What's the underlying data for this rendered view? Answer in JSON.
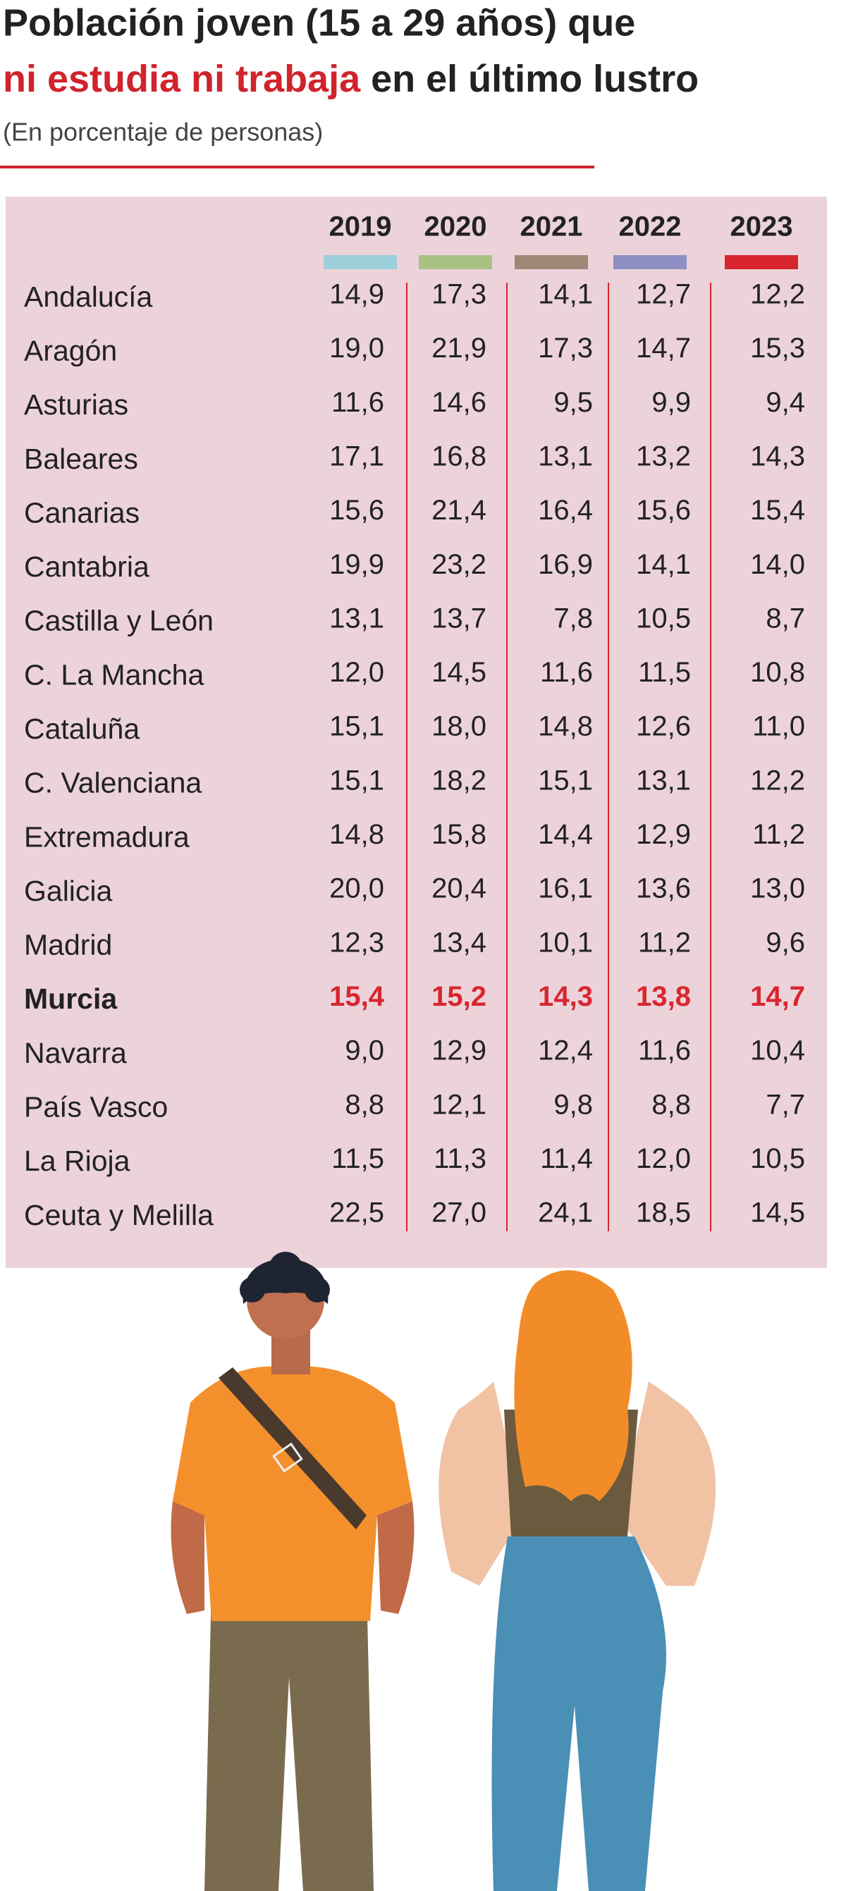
{
  "header": {
    "title_line1": "Población joven (15 a 29 años) que",
    "title_highlight": "ni estudia ni trabaja",
    "title_rest": " en el último lustro",
    "subtitle": "(En porcentaje de personas)"
  },
  "table": {
    "columns": [
      {
        "label": "2019",
        "color": "#9dcfdb"
      },
      {
        "label": "2020",
        "color": "#a9c283"
      },
      {
        "label": "2021",
        "color": "#9f8677"
      },
      {
        "label": "2022",
        "color": "#8e90c3"
      },
      {
        "label": "2023",
        "color": "#d8262f"
      }
    ],
    "rows": [
      {
        "name": "Andalucía",
        "values": [
          "14,9",
          "17,3",
          "14,1",
          "12,7",
          "12,2"
        ]
      },
      {
        "name": "Aragón",
        "values": [
          "19,0",
          "21,9",
          "17,3",
          "14,7",
          "15,3"
        ]
      },
      {
        "name": "Asturias",
        "values": [
          "11,6",
          "14,6",
          "9,5",
          "9,9",
          "9,4"
        ]
      },
      {
        "name": "Baleares",
        "values": [
          "17,1",
          "16,8",
          "13,1",
          "13,2",
          "14,3"
        ]
      },
      {
        "name": "Canarias",
        "values": [
          "15,6",
          "21,4",
          "16,4",
          "15,6",
          "15,4"
        ]
      },
      {
        "name": "Cantabria",
        "values": [
          "19,9",
          "23,2",
          "16,9",
          "14,1",
          "14,0"
        ]
      },
      {
        "name": "Castilla y León",
        "values": [
          "13,1",
          "13,7",
          "7,8",
          "10,5",
          "8,7"
        ]
      },
      {
        "name": "C. La Mancha",
        "values": [
          "12,0",
          "14,5",
          "11,6",
          "11,5",
          "10,8"
        ]
      },
      {
        "name": "Cataluña",
        "values": [
          "15,1",
          "18,0",
          "14,8",
          "12,6",
          "11,0"
        ]
      },
      {
        "name": "C. Valenciana",
        "values": [
          "15,1",
          "18,2",
          "15,1",
          "13,1",
          "12,2"
        ]
      },
      {
        "name": "Extremadura",
        "values": [
          "14,8",
          "15,8",
          "14,4",
          "12,9",
          "11,2"
        ]
      },
      {
        "name": "Galicia",
        "values": [
          "20,0",
          "20,4",
          "16,1",
          "13,6",
          "13,0"
        ]
      },
      {
        "name": "Madrid",
        "values": [
          "12,3",
          "13,4",
          "10,1",
          "11,2",
          "9,6"
        ]
      },
      {
        "name": "Murcia",
        "values": [
          "15,4",
          "15,2",
          "14,3",
          "13,8",
          "14,7"
        ],
        "bold": true
      },
      {
        "name": "Navarra",
        "values": [
          "9,0",
          "12,9",
          "12,4",
          "11,6",
          "10,4"
        ]
      },
      {
        "name": "País Vasco",
        "values": [
          "8,8",
          "12,1",
          "9,8",
          "8,8",
          "7,7"
        ]
      },
      {
        "name": "La Rioja",
        "values": [
          "11,5",
          "11,3",
          "11,4",
          "12,0",
          "10,5"
        ]
      },
      {
        "name": "Ceuta y Melilla",
        "values": [
          "22,5",
          "27,0",
          "24,1",
          "18,5",
          "14,5"
        ]
      }
    ]
  }
}
